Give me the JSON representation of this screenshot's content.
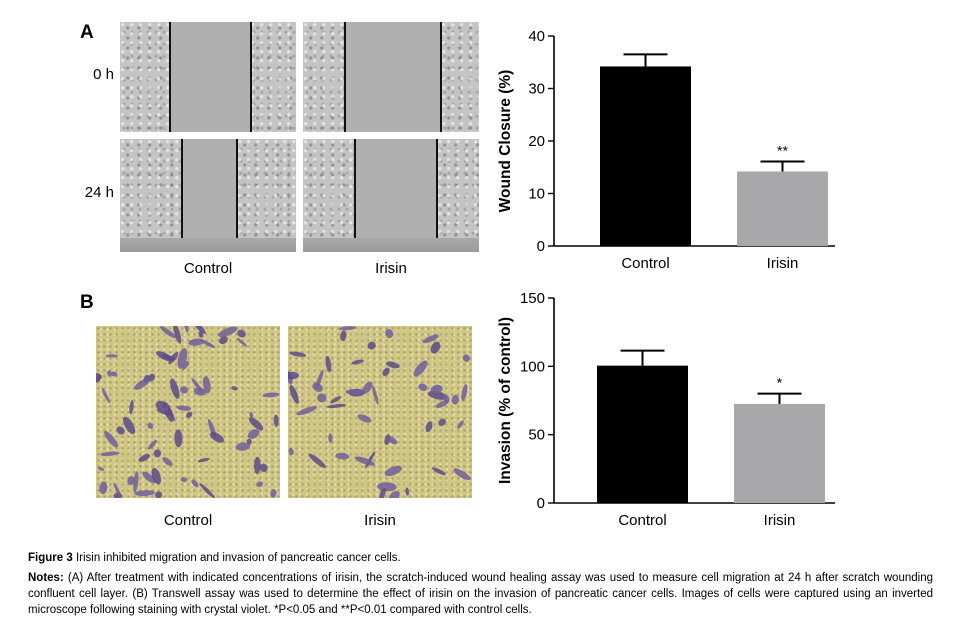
{
  "panel_a": {
    "letter": "A",
    "row_labels": [
      "0 h",
      "24 h"
    ],
    "col_labels": [
      "Control",
      "Irisin"
    ]
  },
  "panel_b": {
    "letter": "B",
    "col_labels": [
      "Control",
      "Irisin"
    ]
  },
  "chart_data": [
    {
      "type": "bar",
      "categories": [
        "Control",
        "Irisin"
      ],
      "values": [
        34.2,
        14.2
      ],
      "errors": [
        2.3,
        1.9
      ],
      "significance": [
        "",
        "**"
      ],
      "ylabel": "Wound Closure (%)",
      "xlabel": "",
      "ylim": [
        0,
        40
      ],
      "yticks": [
        0,
        10,
        20,
        30,
        40
      ],
      "colors": [
        "#000000",
        "#a8a8ab"
      ],
      "grid": false
    },
    {
      "type": "bar",
      "categories": [
        "Control",
        "Irisin"
      ],
      "values": [
        100.5,
        72.5
      ],
      "errors": [
        11.0,
        7.5
      ],
      "significance": [
        "",
        "*"
      ],
      "ylabel": "Invasion (% of control)",
      "xlabel": "",
      "ylim": [
        0,
        150
      ],
      "yticks": [
        0,
        50,
        100,
        150
      ],
      "colors": [
        "#000000",
        "#a8a8ab"
      ],
      "grid": false
    }
  ],
  "caption": {
    "figure_label": "Figure 3",
    "title": "Irisin inhibited migration and invasion of pancreatic cancer cells.",
    "notes_label": "Notes:",
    "notes_text": "(A) After treatment with indicated concentrations of irisin, the scratch-induced wound healing assay was used to measure cell migration at 24 h after scratch wounding confluent cell layer. (B) Transwell assay was used to determine the effect of irisin on the invasion of pancreatic cancer cells. Images of cells were captured using an inverted microscope following staining with crystal violet. *P<0.05 and **P<0.01 compared with control cells."
  }
}
